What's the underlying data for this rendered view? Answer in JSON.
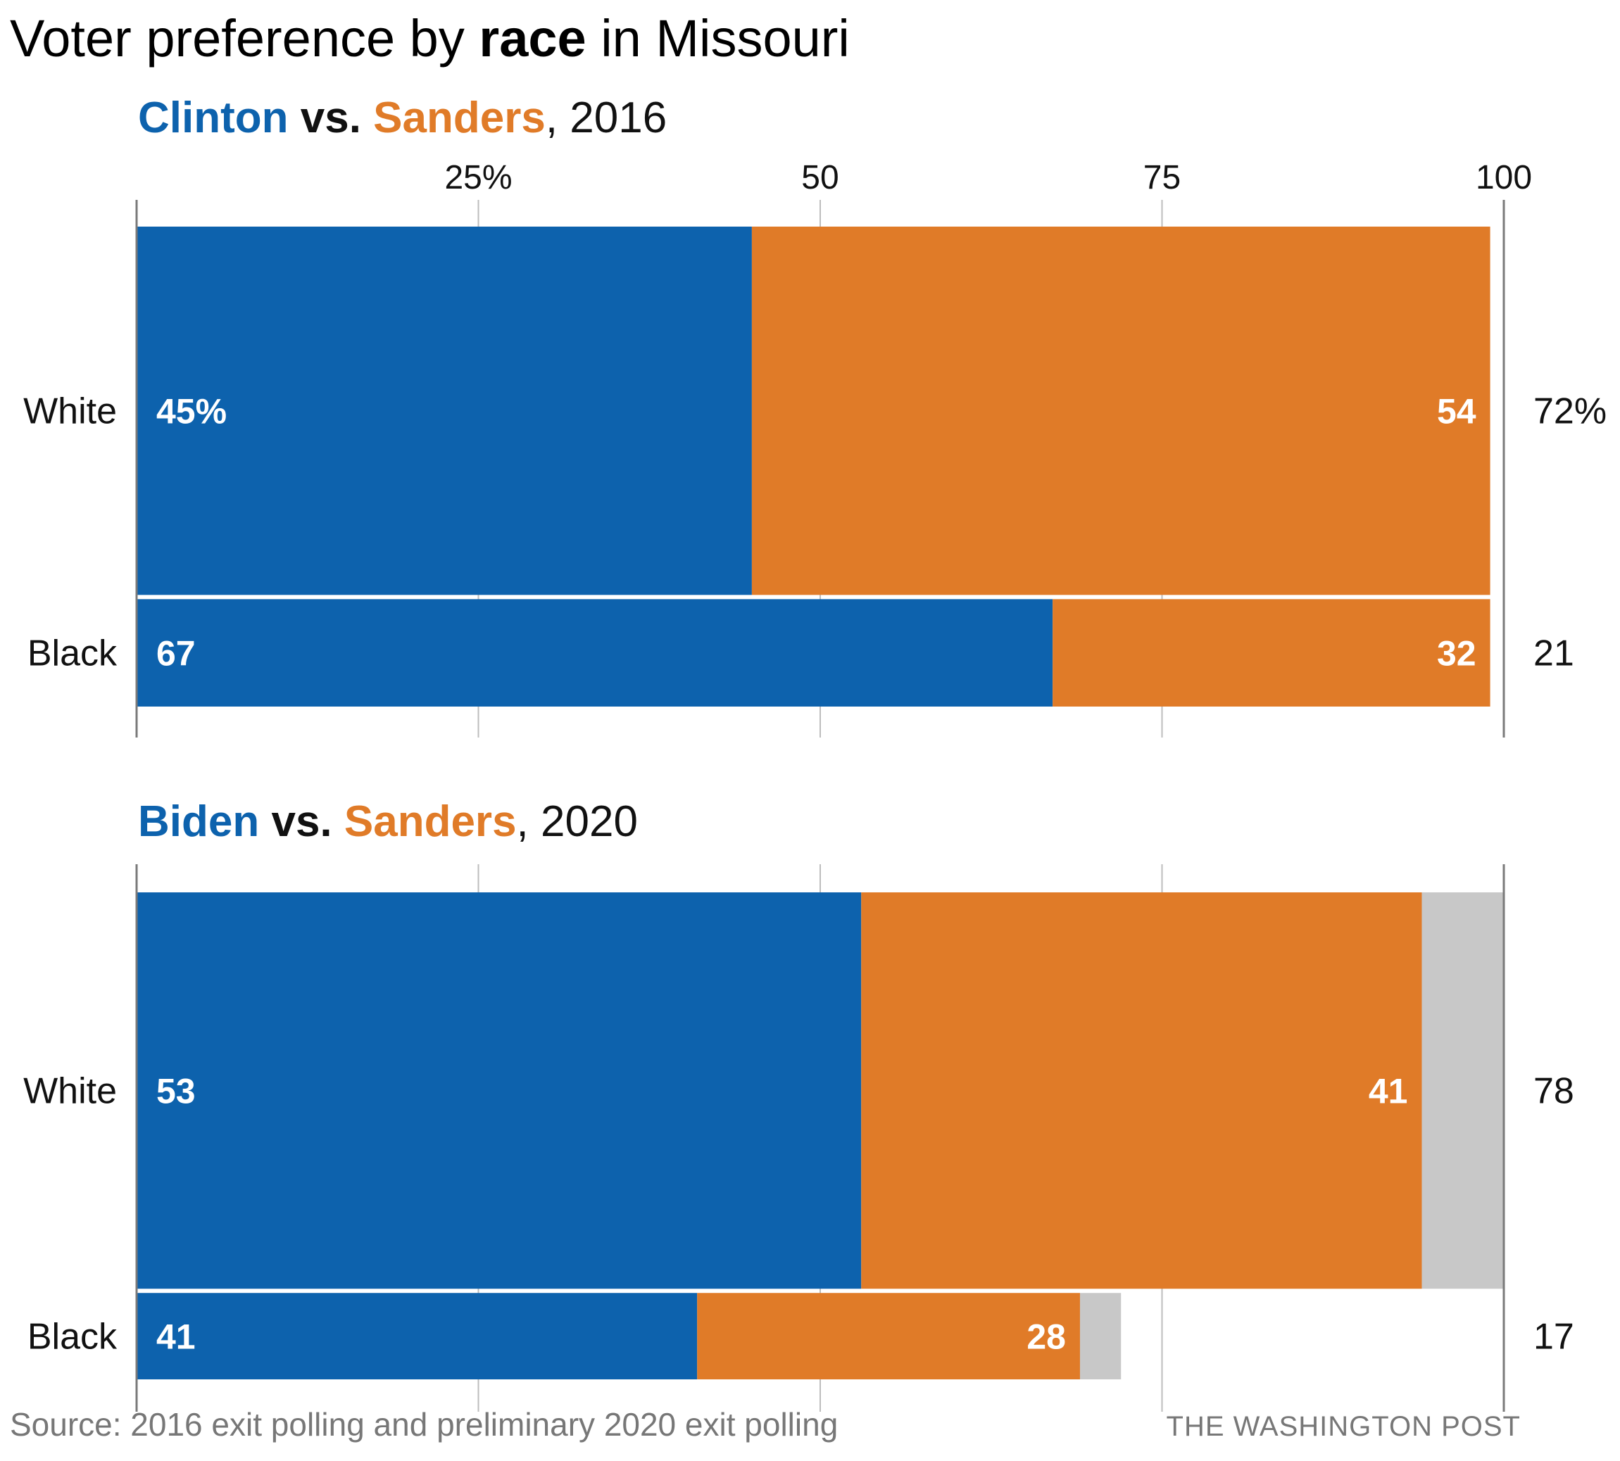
{
  "title": {
    "prefix": "Voter preference by ",
    "emphasis": "race",
    "suffix": " in Missouri"
  },
  "colors": {
    "first": "#0d62ad",
    "second": "#e07b28",
    "other": "#c8c8c8",
    "axis": "#7a7a7a",
    "grid": "#bdbdbd"
  },
  "chart_data": [
    {
      "type": "bar",
      "orientation": "horizontal",
      "stacked": true,
      "subtitle": {
        "first": "Clinton",
        "vs": " vs. ",
        "second": "Sanders",
        "year": ", 2016"
      },
      "xlim": [
        0,
        100
      ],
      "xticks": [
        {
          "value": 25,
          "label": "25%"
        },
        {
          "value": 50,
          "label": "50"
        },
        {
          "value": 75,
          "label": "75"
        },
        {
          "value": 100,
          "label": "100"
        }
      ],
      "grid": true,
      "categories": [
        "White",
        "Black"
      ],
      "bar_weights": [
        72,
        21
      ],
      "series": [
        {
          "name": "Clinton",
          "values": [
            45,
            67
          ],
          "labels": [
            "45%",
            "67"
          ]
        },
        {
          "name": "Sanders",
          "values": [
            54,
            32
          ],
          "labels": [
            "54",
            "32"
          ]
        }
      ],
      "other": [
        0,
        0
      ],
      "share_of_electorate": [
        "72%",
        "21"
      ]
    },
    {
      "type": "bar",
      "orientation": "horizontal",
      "stacked": true,
      "subtitle": {
        "first": "Biden",
        "vs": " vs. ",
        "second": "Sanders",
        "year": ", 2020"
      },
      "xlim": [
        0,
        100
      ],
      "xticks": [
        {
          "value": 25,
          "label": ""
        },
        {
          "value": 50,
          "label": ""
        },
        {
          "value": 75,
          "label": ""
        },
        {
          "value": 100,
          "label": ""
        }
      ],
      "grid": true,
      "categories": [
        "White",
        "Black"
      ],
      "bar_weights": [
        78,
        17
      ],
      "series": [
        {
          "name": "Biden",
          "values": [
            53,
            41
          ],
          "labels": [
            "53",
            "41"
          ]
        },
        {
          "name": "Sanders",
          "values": [
            41,
            28
          ],
          "labels": [
            "41",
            "28"
          ]
        }
      ],
      "other": [
        6,
        3
      ],
      "share_of_electorate": [
        "78",
        "17"
      ]
    }
  ],
  "footer": {
    "source": "Source: 2016 exit polling and preliminary 2020 exit polling",
    "credit": "THE WASHINGTON POST"
  }
}
